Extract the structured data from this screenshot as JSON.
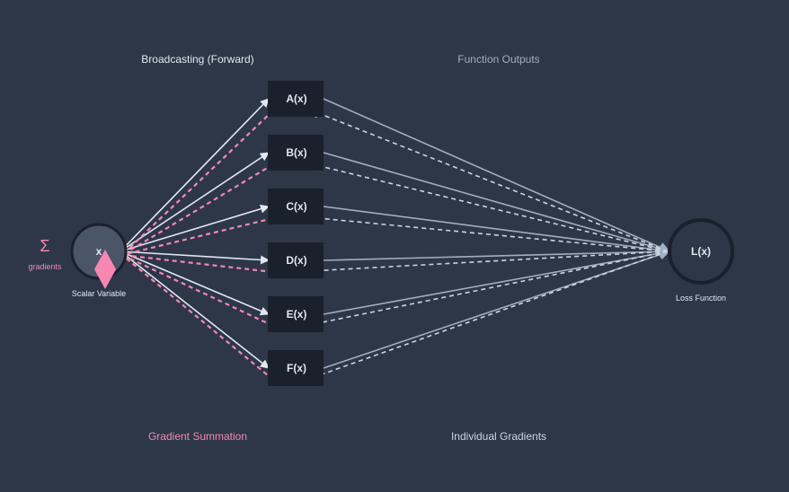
{
  "labels": {
    "broadcasting": "Broadcasting (Forward)",
    "function_outputs": "Function Outputs",
    "gradient_summation": "Gradient Summation",
    "individual_gradients": "Individual Gradients"
  },
  "input_node": {
    "symbol": "x",
    "caption": "Scalar Variable"
  },
  "sum_marker": {
    "symbol": "Σ",
    "caption": "gradients"
  },
  "functions": [
    "A(x)",
    "B(x)",
    "C(x)",
    "D(x)",
    "E(x)",
    "F(x)"
  ],
  "loss_node": {
    "symbol": "L(x)",
    "caption": "Loss Function"
  },
  "colors": {
    "background": "#2d3748",
    "node_fill": "#1a202c",
    "input_fill": "#4a5568",
    "forward_edge": "#e2e8f0",
    "output_edge": "#a0aec0",
    "gradient_edge": "#f687b3",
    "backward_edge": "#cbd5e0"
  }
}
